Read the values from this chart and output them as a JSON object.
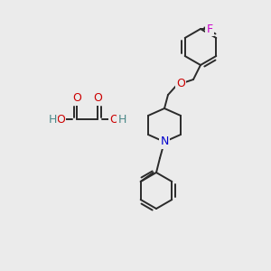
{
  "bg_color": "#ebebeb",
  "bond_color": "#2a2a2a",
  "bond_width": 1.4,
  "atom_colors": {
    "O": "#cc0000",
    "N": "#0000cc",
    "F": "#cc00cc",
    "H": "#4a8888",
    "C": "#2a2a2a"
  },
  "fig_size": [
    3.0,
    3.0
  ],
  "dpi": 100
}
